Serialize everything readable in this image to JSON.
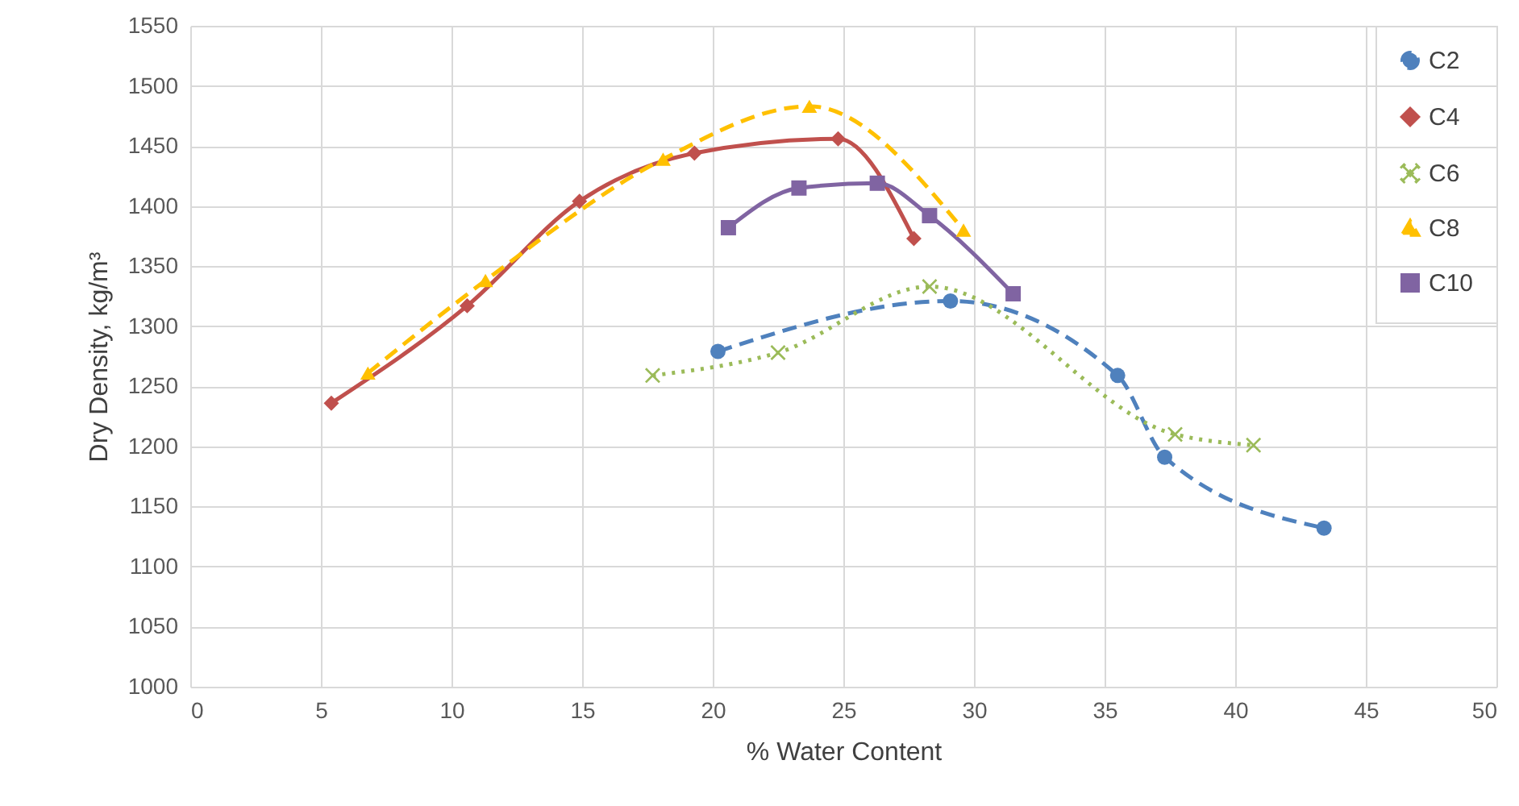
{
  "chart_data": {
    "type": "line",
    "xlabel": "% Water Content",
    "ylabel": "Dry Density, kg/m³",
    "xlim": [
      0,
      50
    ],
    "ylim": [
      1000,
      1550
    ],
    "xticks": [
      0,
      5,
      10,
      15,
      20,
      25,
      30,
      35,
      40,
      45,
      50
    ],
    "yticks": [
      1000,
      1050,
      1100,
      1150,
      1200,
      1250,
      1300,
      1350,
      1400,
      1450,
      1500,
      1550
    ],
    "grid": true,
    "legend": "top right",
    "series": [
      {
        "name": "C2",
        "color": "#4f81bd",
        "marker": "circle",
        "line_style": "dashed",
        "x": [
          20.2,
          29.1,
          35.5,
          37.3,
          43.4
        ],
        "values": [
          1279,
          1321,
          1259,
          1191,
          1132
        ]
      },
      {
        "name": "C4",
        "color": "#c0504d",
        "marker": "diamond",
        "line_style": "solid",
        "x": [
          5.4,
          10.6,
          14.9,
          19.3,
          24.8,
          27.7
        ],
        "values": [
          1236,
          1317,
          1404,
          1444,
          1456,
          1373
        ]
      },
      {
        "name": "C6",
        "color": "#9bbb59",
        "marker": "cross",
        "line_style": "dotted",
        "x": [
          17.7,
          22.5,
          28.3,
          37.7,
          40.7
        ],
        "values": [
          1259,
          1278,
          1333,
          1210,
          1201
        ]
      },
      {
        "name": "C8",
        "color": "#ffc000",
        "marker": "triangle",
        "line_style": "dashed",
        "x": [
          6.8,
          11.3,
          18.1,
          23.7,
          29.6
        ],
        "values": [
          1261,
          1338,
          1439,
          1483,
          1380
        ]
      },
      {
        "name": "C10",
        "color": "#8064a2",
        "marker": "square",
        "line_style": "solid",
        "x": [
          20.6,
          23.3,
          26.3,
          28.3,
          31.5
        ],
        "values": [
          1382,
          1415,
          1419,
          1392,
          1327
        ]
      }
    ]
  }
}
